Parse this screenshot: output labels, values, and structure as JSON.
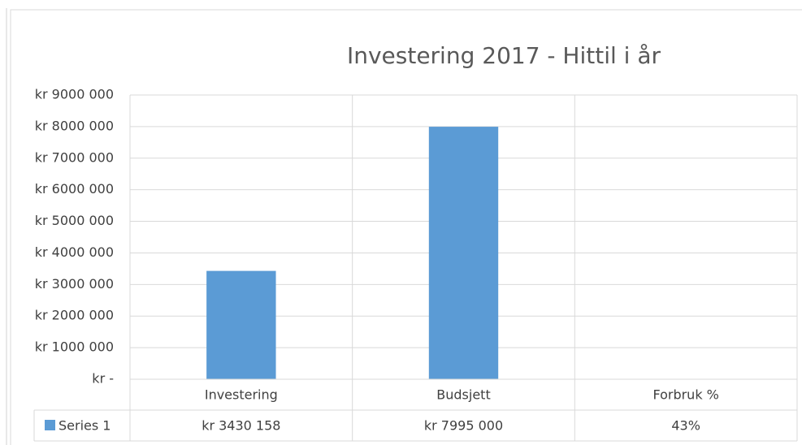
{
  "chart_data": {
    "type": "bar",
    "title": "Investering 2017 - Hittil i år",
    "categories": [
      "Investering",
      "Budsjett",
      "Forbruk %"
    ],
    "series": [
      {
        "name": "Series 1",
        "color": "#5b9bd5",
        "values": [
          3430158,
          7995000,
          0.43
        ],
        "value_labels": [
          "kr 3430 158",
          "kr 7995 000",
          "43%"
        ]
      }
    ],
    "ylim": [
      0,
      9000000
    ],
    "yticks": [
      {
        "value": 0,
        "label": "kr -"
      },
      {
        "value": 1000000,
        "label": "kr 1000 000"
      },
      {
        "value": 2000000,
        "label": "kr 2000 000"
      },
      {
        "value": 3000000,
        "label": "kr 3000 000"
      },
      {
        "value": 4000000,
        "label": "kr 4000 000"
      },
      {
        "value": 5000000,
        "label": "kr 5000 000"
      },
      {
        "value": 6000000,
        "label": "kr 6000 000"
      },
      {
        "value": 7000000,
        "label": "kr 7000 000"
      },
      {
        "value": 8000000,
        "label": "kr 8000 000"
      },
      {
        "value": 9000000,
        "label": "kr 9000 000"
      }
    ],
    "grid": true,
    "data_table": true
  }
}
